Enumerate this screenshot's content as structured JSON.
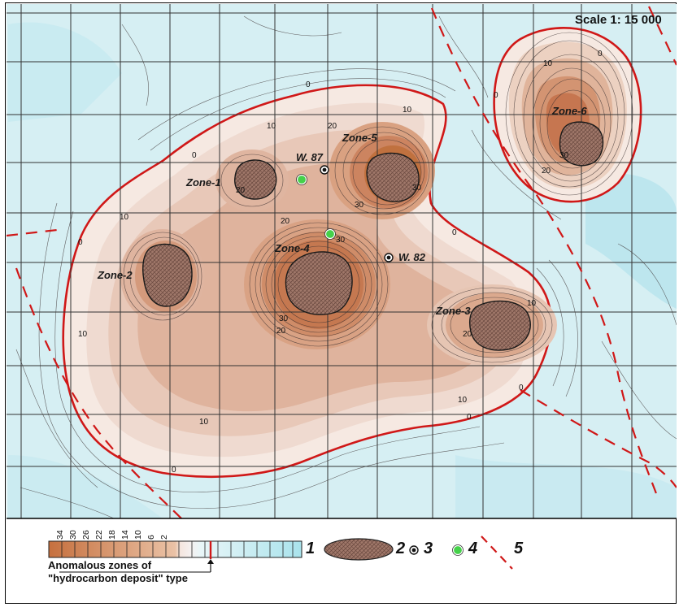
{
  "map": {
    "scale": "Scale 1: 15 000",
    "colors": {
      "background": "#d8f0f4",
      "positive_ramp": [
        "#f7ece6",
        "#efd9cc",
        "#e6c2ad",
        "#dba88c",
        "#cf8d6a",
        "#c2724c",
        "#b55c34"
      ],
      "anomaly_boundary": "#d01818",
      "fault_line": "#d01818",
      "well_green": "#45d14a"
    },
    "contour_value_labels": [
      "0",
      "0",
      "0",
      "0",
      "0",
      "0",
      "0",
      "0",
      "0",
      "10",
      "10",
      "10",
      "10",
      "10",
      "10",
      "10",
      "10",
      "20",
      "20",
      "20",
      "20",
      "20",
      "20",
      "30",
      "30",
      "30",
      "30",
      "30"
    ],
    "zones": [
      {
        "id": "zone-1",
        "label": "Zone-1"
      },
      {
        "id": "zone-2",
        "label": "Zone-2"
      },
      {
        "id": "zone-3",
        "label": "Zone-3"
      },
      {
        "id": "zone-4",
        "label": "Zone-4"
      },
      {
        "id": "zone-5",
        "label": "Zone-5"
      },
      {
        "id": "zone-6",
        "label": "Zone-6"
      }
    ],
    "wells": [
      {
        "id": "w87",
        "label": "W. 87",
        "type": "drilled-well"
      },
      {
        "id": "w82",
        "label": "W. 82",
        "type": "drilled-well"
      },
      {
        "id": "g1",
        "label": "",
        "type": "projected-well"
      },
      {
        "id": "g2",
        "label": "",
        "type": "projected-well"
      }
    ]
  },
  "legend": {
    "scale_ticks": [
      "34",
      "30",
      "26",
      "22",
      "18",
      "14",
      "10",
      "6",
      "2"
    ],
    "items": [
      {
        "number": "1",
        "symbol": "color-scale"
      },
      {
        "number": "2",
        "symbol": "hatched-ellipse"
      },
      {
        "number": "3",
        "symbol": "black-dot-well"
      },
      {
        "number": "4",
        "symbol": "green-dot-well"
      },
      {
        "number": "5",
        "symbol": "red-dashed-line"
      }
    ],
    "caption_line1": "Anomalous zones of",
    "caption_line2": "\"hydrocarbon deposit\" type"
  }
}
